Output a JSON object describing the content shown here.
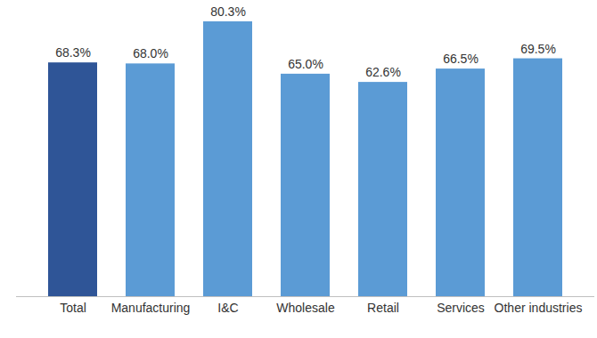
{
  "chart_data": {
    "type": "bar",
    "categories": [
      "Total",
      "Manufacturing",
      "I&C",
      "Wholesale",
      "Retail",
      "Services",
      "Other industries"
    ],
    "values": [
      68.3,
      68.0,
      80.3,
      65.0,
      62.6,
      66.5,
      69.5
    ],
    "value_labels": [
      "68.3%",
      "68.0%",
      "80.3%",
      "65.0%",
      "62.6%",
      "66.5%",
      "69.5%"
    ],
    "colors": [
      "#2f5597",
      "#5b9bd5",
      "#5b9bd5",
      "#5b9bd5",
      "#5b9bd5",
      "#5b9bd5",
      "#5b9bd5"
    ],
    "data_labels": true,
    "tick_labels": "x",
    "grid": false
  }
}
